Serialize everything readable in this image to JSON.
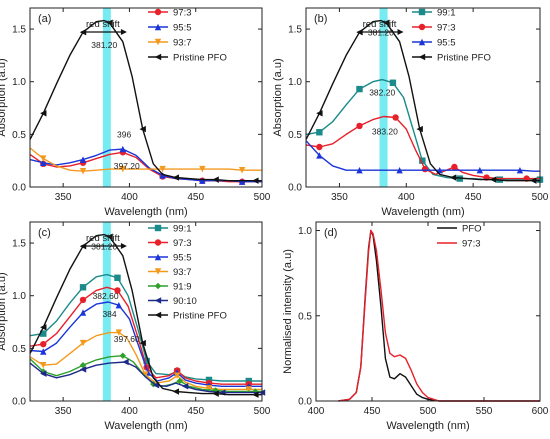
{
  "chart_data": [
    {
      "type": "line",
      "panel_label": "(a)",
      "xlabel": "Wavelength (nm)",
      "ylabel": "Absorption (a.u)",
      "xlim": [
        325,
        500
      ],
      "ylim": [
        0,
        1.7
      ],
      "xticks": [
        350,
        400,
        450,
        500
      ],
      "yticks": [
        0.0,
        0.5,
        1.0,
        1.5
      ],
      "highlight_band": [
        380,
        386
      ],
      "shift_label": "red shift",
      "legend_position": "top-right",
      "series": [
        {
          "name": "97:3",
          "color": "#e8202a",
          "marker": "circle",
          "x": [
            325,
            335,
            345,
            355,
            365,
            375,
            385,
            395,
            405,
            415,
            425,
            435,
            445,
            455,
            465,
            475,
            485,
            495,
            500
          ],
          "y": [
            0.31,
            0.22,
            0.19,
            0.2,
            0.23,
            0.27,
            0.31,
            0.33,
            0.28,
            0.17,
            0.1,
            0.08,
            0.07,
            0.06,
            0.06,
            0.05,
            0.05,
            0.05,
            0.05
          ]
        },
        {
          "name": "95:5",
          "color": "#1a35d8",
          "marker": "triangle-up",
          "x": [
            325,
            335,
            345,
            355,
            365,
            375,
            385,
            395,
            405,
            415,
            425,
            435,
            445,
            455,
            465,
            475,
            485,
            495,
            500
          ],
          "y": [
            0.26,
            0.23,
            0.21,
            0.23,
            0.26,
            0.3,
            0.35,
            0.36,
            0.3,
            0.18,
            0.11,
            0.08,
            0.07,
            0.06,
            0.06,
            0.06,
            0.05,
            0.05,
            0.05
          ]
        },
        {
          "name": "93:7",
          "color": "#f39a1e",
          "marker": "triangle-down",
          "x": [
            325,
            335,
            345,
            355,
            365,
            375,
            385,
            395,
            405,
            415,
            425,
            435,
            445,
            455,
            465,
            475,
            485,
            495,
            500
          ],
          "y": [
            0.37,
            0.27,
            0.2,
            0.16,
            0.15,
            0.16,
            0.17,
            0.17,
            0.17,
            0.17,
            0.17,
            0.17,
            0.17,
            0.17,
            0.17,
            0.17,
            0.16,
            0.16,
            0.16
          ]
        },
        {
          "name": "Pristine PFO",
          "color": "#111111",
          "marker": "triangle-left",
          "x": [
            325,
            335,
            345,
            355,
            365,
            375,
            381,
            385,
            395,
            402,
            410,
            418,
            425,
            435,
            445,
            455,
            465,
            475,
            485,
            495,
            500
          ],
          "y": [
            0.45,
            0.7,
            0.98,
            1.25,
            1.47,
            1.57,
            1.58,
            1.56,
            1.38,
            1.05,
            0.55,
            0.22,
            0.12,
            0.09,
            0.08,
            0.07,
            0.07,
            0.06,
            0.06,
            0.06,
            0.06
          ]
        }
      ],
      "annotations": [
        {
          "text": "381.20",
          "x": 381,
          "y": 1.32
        },
        {
          "text": "396",
          "x": 396,
          "y": 0.47
        },
        {
          "text": "397.20",
          "x": 398,
          "y": 0.17
        }
      ]
    },
    {
      "type": "line",
      "panel_label": "(b)",
      "xlabel": "Wavelength (nm)",
      "ylabel": "Absorption (a.u)",
      "xlim": [
        325,
        500
      ],
      "ylim": [
        0,
        1.7
      ],
      "xticks": [
        350,
        400,
        450,
        500
      ],
      "yticks": [
        0.0,
        0.5,
        1.0,
        1.5
      ],
      "highlight_band": [
        380,
        386
      ],
      "shift_label": "red shift",
      "legend_position": "top-right",
      "series": [
        {
          "name": "99:1",
          "color": "#1a8a8a",
          "marker": "square",
          "x": [
            325,
            335,
            345,
            355,
            365,
            375,
            382,
            390,
            398,
            405,
            412,
            420,
            430,
            440,
            450,
            460,
            470,
            480,
            490,
            500
          ],
          "y": [
            0.5,
            0.52,
            0.62,
            0.78,
            0.93,
            1.0,
            1.02,
            0.99,
            0.85,
            0.55,
            0.25,
            0.12,
            0.09,
            0.08,
            0.08,
            0.07,
            0.07,
            0.07,
            0.07,
            0.07
          ]
        },
        {
          "name": "97:3",
          "color": "#e8202a",
          "marker": "circle",
          "x": [
            325,
            335,
            345,
            355,
            365,
            375,
            383,
            392,
            400,
            407,
            414,
            422,
            430,
            436,
            442,
            450,
            460,
            470,
            480,
            490,
            500
          ],
          "y": [
            0.4,
            0.38,
            0.41,
            0.5,
            0.58,
            0.64,
            0.67,
            0.66,
            0.55,
            0.35,
            0.17,
            0.12,
            0.16,
            0.19,
            0.14,
            0.11,
            0.09,
            0.08,
            0.08,
            0.08,
            0.08
          ]
        },
        {
          "name": "95:5",
          "color": "#1a35d8",
          "marker": "triangle-up",
          "x": [
            325,
            335,
            345,
            355,
            365,
            375,
            385,
            395,
            405,
            415,
            425,
            435,
            445,
            455,
            465,
            475,
            485,
            495,
            500
          ],
          "y": [
            0.44,
            0.3,
            0.2,
            0.16,
            0.16,
            0.16,
            0.16,
            0.16,
            0.16,
            0.16,
            0.16,
            0.16,
            0.16,
            0.16,
            0.16,
            0.16,
            0.16,
            0.15,
            0.15
          ]
        },
        {
          "name": "Pristine PFO",
          "color": "#111111",
          "marker": "triangle-left",
          "x": [
            325,
            335,
            345,
            355,
            365,
            375,
            381,
            385,
            395,
            402,
            410,
            418,
            425,
            435,
            445,
            455,
            465,
            475,
            485,
            495,
            500
          ],
          "y": [
            0.45,
            0.7,
            0.98,
            1.25,
            1.47,
            1.57,
            1.58,
            1.56,
            1.38,
            1.05,
            0.55,
            0.22,
            0.12,
            0.09,
            0.08,
            0.07,
            0.07,
            0.06,
            0.06,
            0.06,
            0.06
          ]
        }
      ],
      "annotations": [
        {
          "text": "381.20",
          "x": 381,
          "y": 1.44
        },
        {
          "text": "382.20",
          "x": 382,
          "y": 0.87
        },
        {
          "text": "383.20",
          "x": 384,
          "y": 0.5
        }
      ]
    },
    {
      "type": "line",
      "panel_label": "(c)",
      "xlabel": "Wavelength (nm)",
      "ylabel": "Absorption (a.u)",
      "xlim": [
        325,
        500
      ],
      "ylim": [
        0,
        1.7
      ],
      "xticks": [
        350,
        400,
        450,
        500
      ],
      "yticks": [
        0.0,
        0.5,
        1.0,
        1.5
      ],
      "highlight_band": [
        380,
        386
      ],
      "shift_label": "red shift",
      "legend_position": "top-right",
      "series": [
        {
          "name": "99:1",
          "color": "#1a8a8a",
          "marker": "square",
          "x": [
            325,
            335,
            345,
            355,
            365,
            375,
            383,
            391,
            399,
            406,
            413,
            420,
            430,
            436,
            442,
            450,
            460,
            470,
            480,
            490,
            500
          ],
          "y": [
            0.62,
            0.64,
            0.76,
            0.93,
            1.08,
            1.18,
            1.2,
            1.17,
            1.0,
            0.7,
            0.38,
            0.26,
            0.25,
            0.28,
            0.23,
            0.21,
            0.2,
            0.19,
            0.19,
            0.19,
            0.19
          ]
        },
        {
          "name": "97:3",
          "color": "#e8202a",
          "marker": "circle",
          "x": [
            325,
            335,
            345,
            355,
            365,
            375,
            383,
            391,
            399,
            406,
            413,
            420,
            430,
            436,
            442,
            450,
            460,
            470,
            480,
            490,
            500
          ],
          "y": [
            0.52,
            0.54,
            0.64,
            0.8,
            0.96,
            1.05,
            1.08,
            1.05,
            0.9,
            0.62,
            0.32,
            0.22,
            0.24,
            0.29,
            0.22,
            0.19,
            0.17,
            0.16,
            0.16,
            0.16,
            0.16
          ]
        },
        {
          "name": "95:5",
          "color": "#1a35d8",
          "marker": "triangle-up",
          "x": [
            325,
            335,
            345,
            355,
            365,
            375,
            384,
            392,
            400,
            407,
            414,
            421,
            430,
            436,
            442,
            450,
            460,
            470,
            480,
            490,
            500
          ],
          "y": [
            0.48,
            0.47,
            0.55,
            0.7,
            0.84,
            0.92,
            0.94,
            0.91,
            0.78,
            0.52,
            0.27,
            0.19,
            0.22,
            0.27,
            0.2,
            0.17,
            0.15,
            0.14,
            0.14,
            0.14,
            0.14
          ]
        },
        {
          "name": "93:7",
          "color": "#f39a1e",
          "marker": "triangle-down",
          "x": [
            325,
            335,
            345,
            355,
            365,
            375,
            385,
            392,
            398,
            405,
            412,
            420,
            430,
            436,
            442,
            450,
            460,
            470,
            480,
            490,
            500
          ],
          "y": [
            0.42,
            0.34,
            0.35,
            0.45,
            0.55,
            0.62,
            0.65,
            0.65,
            0.6,
            0.44,
            0.25,
            0.17,
            0.19,
            0.24,
            0.18,
            0.14,
            0.12,
            0.11,
            0.11,
            0.11,
            0.11
          ]
        },
        {
          "name": "91:9",
          "color": "#2fa02c",
          "marker": "diamond",
          "x": [
            325,
            335,
            345,
            355,
            365,
            375,
            385,
            395,
            403,
            410,
            418,
            425,
            432,
            438,
            445,
            455,
            465,
            475,
            485,
            495,
            500
          ],
          "y": [
            0.4,
            0.28,
            0.24,
            0.28,
            0.34,
            0.39,
            0.42,
            0.43,
            0.37,
            0.26,
            0.16,
            0.14,
            0.16,
            0.19,
            0.14,
            0.11,
            0.1,
            0.09,
            0.09,
            0.09,
            0.09
          ]
        },
        {
          "name": "90:10",
          "color": "#1e2a8a",
          "marker": "triangle-left",
          "x": [
            325,
            335,
            345,
            355,
            365,
            375,
            385,
            397,
            405,
            412,
            420,
            428,
            435,
            442,
            450,
            460,
            470,
            480,
            490,
            500
          ],
          "y": [
            0.36,
            0.26,
            0.22,
            0.25,
            0.3,
            0.34,
            0.36,
            0.37,
            0.32,
            0.23,
            0.15,
            0.14,
            0.17,
            0.14,
            0.11,
            0.09,
            0.08,
            0.08,
            0.08,
            0.08
          ]
        },
        {
          "name": "Pristine PFO",
          "color": "#111111",
          "marker": "triangle-left",
          "x": [
            325,
            335,
            345,
            355,
            365,
            375,
            381,
            385,
            395,
            402,
            410,
            418,
            425,
            435,
            445,
            455,
            465,
            475,
            485,
            495,
            500
          ],
          "y": [
            0.45,
            0.7,
            0.98,
            1.25,
            1.47,
            1.57,
            1.58,
            1.56,
            1.38,
            1.05,
            0.55,
            0.22,
            0.12,
            0.09,
            0.08,
            0.07,
            0.07,
            0.06,
            0.06,
            0.06,
            0.06
          ]
        }
      ],
      "annotations": [
        {
          "text": "381.20",
          "x": 381,
          "y": 1.44
        },
        {
          "text": "382.60",
          "x": 382,
          "y": 0.97
        },
        {
          "text": "384",
          "x": 385,
          "y": 0.8
        },
        {
          "text": "397.60",
          "x": 398,
          "y": 0.56
        }
      ]
    },
    {
      "type": "line",
      "panel_label": "(d)",
      "xlabel": "Wavelength (nm)",
      "ylabel": "Normalised intensity (a.u)",
      "xlim": [
        400,
        600
      ],
      "ylim": [
        0,
        1.05
      ],
      "xticks": [
        400,
        450,
        500,
        550,
        600
      ],
      "yticks": [
        0.0,
        0.5,
        1.0
      ],
      "legend_position": "top-right",
      "series": [
        {
          "name": "PFO",
          "color": "#111111",
          "marker": "none",
          "x": [
            420,
            430,
            436,
            440,
            444,
            447,
            449,
            451,
            454,
            458,
            462,
            466,
            470,
            475,
            480,
            485,
            490,
            495,
            500,
            510,
            520,
            540,
            560,
            600
          ],
          "y": [
            0.0,
            0.01,
            0.05,
            0.2,
            0.62,
            0.9,
            1.0,
            0.97,
            0.82,
            0.55,
            0.25,
            0.14,
            0.13,
            0.16,
            0.14,
            0.09,
            0.04,
            0.02,
            0.01,
            0.0,
            0.0,
            0.0,
            0.0,
            0.0
          ]
        },
        {
          "name": "97:3",
          "color": "#e8202a",
          "marker": "none",
          "x": [
            420,
            430,
            436,
            440,
            444,
            447,
            449,
            451,
            454,
            458,
            462,
            466,
            470,
            475,
            480,
            485,
            490,
            495,
            500,
            505,
            510,
            520,
            540,
            560,
            600
          ],
          "y": [
            0.0,
            0.01,
            0.05,
            0.2,
            0.6,
            0.88,
            1.0,
            0.98,
            0.88,
            0.65,
            0.4,
            0.28,
            0.26,
            0.27,
            0.25,
            0.18,
            0.1,
            0.05,
            0.02,
            0.01,
            0.0,
            0.0,
            0.0,
            0.0,
            0.0
          ]
        }
      ]
    }
  ]
}
